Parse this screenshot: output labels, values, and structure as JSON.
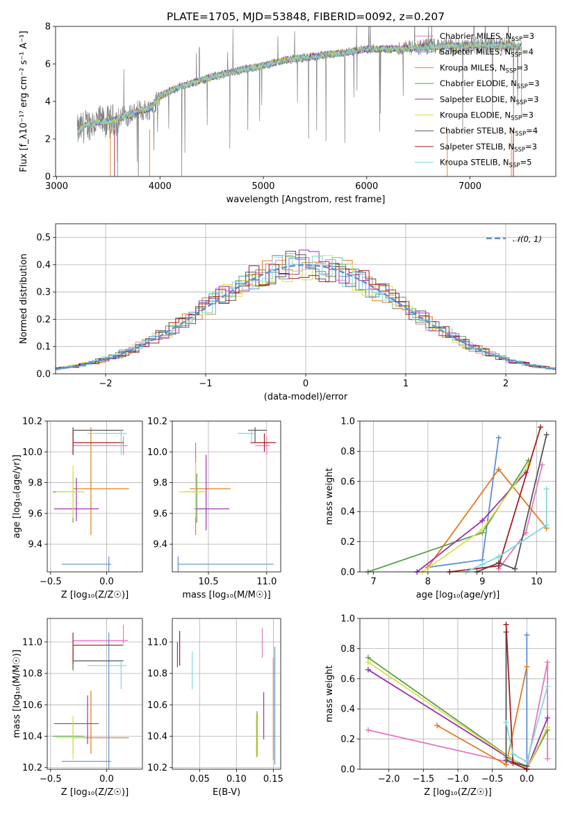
{
  "title": "PLATE=1705, MJD=53848, FIBERID=0092, z=0.207",
  "colors": {
    "Chabrier MILES": "#e377c2",
    "Salpeter MILES": "#5b8ed6",
    "Kroupa MILES": "#e07b1e",
    "Chabrier ELODIE": "#5a9e4b",
    "Salpeter ELODIE": "#9b30b0",
    "Kroupa ELODIE": "#d9e04a",
    "Chabrier STELIB": "#555555",
    "Salpeter STELIB": "#a51c1c",
    "Kroupa STELIB": "#7fd8de"
  },
  "chart_data": [
    {
      "type": "line",
      "xlabel": "wavelength [Angstrom, rest frame]",
      "ylabel": "Flux [f_λ10⁻¹⁷ erg cm⁻² s⁻¹ A⁻¹]",
      "xlim": [
        2990,
        7830
      ],
      "ylim": [
        0,
        8
      ],
      "xticks": [
        "3000",
        "4000",
        "5000",
        "6000",
        "7000"
      ],
      "yticks": [
        "0",
        "2",
        "4",
        "6",
        "8"
      ],
      "grid": false,
      "legend_position": "right",
      "data_color": "#808080",
      "continuum": {
        "x": [
          3200,
          3300,
          3400,
          3500,
          3600,
          3700,
          3800,
          3900,
          4000,
          4200,
          4500,
          4800,
          5000,
          5200,
          5500,
          5800,
          6000,
          6300,
          6600,
          7000,
          7300,
          7500
        ],
        "y": [
          2.4,
          2.8,
          2.9,
          2.9,
          3.1,
          3.3,
          3.5,
          3.6,
          4.3,
          4.8,
          5.3,
          5.7,
          5.9,
          6.2,
          6.4,
          6.6,
          6.8,
          6.8,
          6.9,
          7.0,
          7.0,
          6.9
        ]
      },
      "series": [
        {
          "name": "Chabrier MILES, N_SSP=3"
        },
        {
          "name": "Salpeter MILES, N_SSP=4"
        },
        {
          "name": "Kroupa MILES, N_SSP=3"
        },
        {
          "name": "Chabrier ELODIE, N_SSP=3"
        },
        {
          "name": "Salpeter ELODIE, N_SSP=3"
        },
        {
          "name": "Kroupa ELODIE, N_SSP=3"
        },
        {
          "name": "Chabrier STELIB, N_SSP=4"
        },
        {
          "name": "Salpeter STELIB, N_SSP=3"
        },
        {
          "name": "Kroupa STELIB, N_SSP=5"
        }
      ]
    },
    {
      "type": "histogram",
      "xlabel": "(data-model)/error",
      "ylabel": "Normed distribution",
      "xlim": [
        -2.5,
        2.5
      ],
      "ylim": [
        0,
        0.55
      ],
      "xticks": [
        "−2",
        "−1",
        "0",
        "1",
        "2"
      ],
      "yticks": [
        "0.0",
        "0.1",
        "0.2",
        "0.3",
        "0.4",
        "0.5"
      ],
      "grid": true,
      "legend": {
        "label": "𝒩(0, 1)",
        "position": "top-right",
        "color": "#5b8ed6",
        "style": "dashed"
      },
      "bin_width": 0.1
    },
    {
      "type": "errorbar",
      "xlabel": "Z [log₁₀(Z/Z☉)]",
      "ylabel": "age  [log₁₀(age/yr)]",
      "xlim": [
        -0.53,
        0.32
      ],
      "ylim": [
        9.22,
        10.2
      ],
      "xticks": [
        "−0.5",
        "0.0"
      ],
      "yticks": [
        "9.4",
        "9.6",
        "9.8",
        "10.0",
        "10.2"
      ],
      "grid": true,
      "points": [
        {
          "model": "Chabrier MILES",
          "x": 0.15,
          "xerr": [
            0.45,
            0.04
          ],
          "y": 10.04,
          "yerr": [
            0.06,
            0.06
          ]
        },
        {
          "model": "Salpeter MILES",
          "x": 0.02,
          "xerr": [
            0.42,
            0.02
          ],
          "y": 9.27,
          "yerr": [
            0.7,
            0.05
          ]
        },
        {
          "model": "Kroupa MILES",
          "x": -0.14,
          "xerr": [
            0.16,
            0.34
          ],
          "y": 9.76,
          "yerr": [
            0.3,
            0.4
          ]
        },
        {
          "model": "Chabrier ELODIE",
          "x": -0.3,
          "xerr": [
            0.18,
            0.1
          ],
          "y": 9.74,
          "yerr": [
            0.2,
            0.13
          ]
        },
        {
          "model": "Salpeter ELODIE",
          "x": -0.27,
          "xerr": [
            0.2,
            0.2
          ],
          "y": 9.63,
          "yerr": [
            0.08,
            0.2
          ]
        },
        {
          "model": "Kroupa ELODIE",
          "x": -0.3,
          "xerr": [
            0.15,
            0.1
          ],
          "y": 9.74,
          "yerr": [
            0.17,
            0.17
          ]
        },
        {
          "model": "Chabrier STELIB",
          "x": -0.3,
          "xerr": [
            0.0,
            0.45
          ],
          "y": 10.14,
          "yerr": [
            0.16,
            0.02
          ]
        },
        {
          "model": "Salpeter STELIB",
          "x": -0.3,
          "xerr": [
            0.0,
            0.45
          ],
          "y": 10.06,
          "yerr": [
            0.08,
            0.08
          ]
        },
        {
          "model": "Kroupa STELIB",
          "x": 0.13,
          "xerr": [
            0.3,
            0.05
          ],
          "y": 10.12,
          "yerr": [
            0.14,
            0.02
          ]
        }
      ]
    },
    {
      "type": "errorbar",
      "xlabel": "mass [log₁₀(M/M☉)]",
      "ylabel": "",
      "xlim": [
        10.19,
        11.12
      ],
      "ylim": [
        9.22,
        10.2
      ],
      "xticks": [
        "10.5",
        "11.0"
      ],
      "yticks": [
        "9.4",
        "9.6",
        "9.8",
        "10.0",
        "10.2"
      ],
      "grid": true,
      "points": [
        {
          "model": "Chabrier MILES",
          "x": 11.0,
          "xerr": [
            0.1,
            0.03
          ],
          "y": 10.04,
          "yerr": [
            0.06,
            0.06
          ]
        },
        {
          "model": "Salpeter MILES",
          "x": 10.24,
          "xerr": [
            0.0,
            0.82
          ],
          "y": 9.27,
          "yerr": [
            0.7,
            0.05
          ]
        },
        {
          "model": "Kroupa MILES",
          "x": 10.39,
          "xerr": [
            0.05,
            0.3
          ],
          "y": 9.76,
          "yerr": [
            0.3,
            0.3
          ]
        },
        {
          "model": "Chabrier ELODIE",
          "x": 10.4,
          "xerr": [
            0.11,
            0.09
          ],
          "y": 9.74,
          "yerr": [
            0.2,
            0.12
          ]
        },
        {
          "model": "Salpeter ELODIE",
          "x": 10.48,
          "xerr": [
            0.1,
            0.2
          ],
          "y": 9.63,
          "yerr": [
            0.14,
            0.35
          ]
        },
        {
          "model": "Kroupa ELODIE",
          "x": 10.39,
          "xerr": [
            0.14,
            0.1
          ],
          "y": 9.74,
          "yerr": [
            0.17,
            0.19
          ]
        },
        {
          "model": "Chabrier STELIB",
          "x": 10.9,
          "xerr": [
            0.06,
            0.1
          ],
          "y": 10.14,
          "yerr": [
            0.08,
            0.02
          ]
        },
        {
          "model": "Salpeter STELIB",
          "x": 10.98,
          "xerr": [
            0.12,
            0.1
          ],
          "y": 10.06,
          "yerr": [
            0.06,
            0.06
          ]
        },
        {
          "model": "Kroupa STELIB",
          "x": 10.87,
          "xerr": [
            0.12,
            0.03
          ],
          "y": 10.12,
          "yerr": [
            0.06,
            0.02
          ]
        }
      ]
    },
    {
      "type": "line",
      "xlabel": "age  [log₁₀(age/yr)]",
      "ylabel": "mass weight",
      "xlim": [
        6.75,
        10.35
      ],
      "ylim": [
        0,
        1
      ],
      "xticks": [
        "7",
        "8",
        "9",
        "10"
      ],
      "yticks": [
        "0.0",
        "0.2",
        "0.4",
        "0.6",
        "0.8",
        "1.0"
      ],
      "grid": true,
      "series": [
        {
          "model": "Chabrier MILES",
          "x": [
            9.3,
            9.8,
            10.1
          ],
          "y": [
            0.02,
            0.26,
            0.71
          ]
        },
        {
          "model": "Salpeter MILES",
          "x": [
            8.0,
            9.0,
            9.3
          ],
          "y": [
            0.03,
            0.08,
            0.89
          ]
        },
        {
          "model": "Kroupa MILES",
          "x": [
            8.0,
            9.3,
            10.18
          ],
          "y": [
            0.03,
            0.68,
            0.29
          ]
        },
        {
          "model": "Chabrier ELODIE",
          "x": [
            6.9,
            9.0,
            9.85
          ],
          "y": [
            0.0,
            0.26,
            0.74
          ]
        },
        {
          "model": "Salpeter ELODIE",
          "x": [
            7.8,
            9.0,
            9.8
          ],
          "y": [
            0.0,
            0.34,
            0.66
          ]
        },
        {
          "model": "Kroupa ELODIE",
          "x": [
            7.9,
            9.0,
            9.85
          ],
          "y": [
            0.0,
            0.28,
            0.71
          ]
        },
        {
          "model": "Chabrier STELIB",
          "x": [
            8.9,
            9.3,
            9.6,
            10.18
          ],
          "y": [
            0.0,
            0.06,
            0.02,
            0.91
          ]
        },
        {
          "model": "Salpeter STELIB",
          "x": [
            8.4,
            9.3,
            10.07
          ],
          "y": [
            0.0,
            0.04,
            0.96
          ]
        },
        {
          "model": "Kroupa STELIB",
          "x": [
            8.7,
            9.0,
            9.3,
            10.18,
            10.18
          ],
          "y": [
            0.0,
            0.05,
            0.1,
            0.31,
            0.55
          ]
        }
      ]
    },
    {
      "type": "errorbar",
      "xlabel": "Z [log₁₀(Z/Z☉)]",
      "ylabel": "mass [log₁₀(M/M☉)]",
      "xlim": [
        -0.53,
        0.32
      ],
      "ylim": [
        10.19,
        11.15
      ],
      "xticks": [
        "−0.5",
        "0.0"
      ],
      "yticks": [
        "10.2",
        "10.4",
        "10.6",
        "10.8",
        "11.0"
      ],
      "grid": true,
      "points": [
        {
          "model": "Chabrier MILES",
          "x": 0.15,
          "xerr": [
            0.45,
            0.04
          ],
          "y": 11.01,
          "yerr": [
            0.02,
            0.1
          ]
        },
        {
          "model": "Salpeter MILES",
          "x": 0.02,
          "xerr": [
            0.42,
            0.02
          ],
          "y": 10.24,
          "yerr": [
            0.05,
            0.82
          ]
        },
        {
          "model": "Kroupa MILES",
          "x": -0.14,
          "xerr": [
            0.16,
            0.34
          ],
          "y": 10.39,
          "yerr": [
            0.1,
            0.3
          ]
        },
        {
          "model": "Chabrier ELODIE",
          "x": -0.3,
          "xerr": [
            0.18,
            0.1
          ],
          "y": 10.4,
          "yerr": [
            0.11,
            0.09
          ]
        },
        {
          "model": "Salpeter ELODIE",
          "x": -0.17,
          "xerr": [
            0.3,
            0.1
          ],
          "y": 10.48,
          "yerr": [
            0.13,
            0.18
          ]
        },
        {
          "model": "Kroupa ELODIE",
          "x": -0.3,
          "xerr": [
            0.15,
            0.1
          ],
          "y": 10.39,
          "yerr": [
            0.14,
            0.14
          ]
        },
        {
          "model": "Chabrier STELIB",
          "x": -0.3,
          "xerr": [
            0.0,
            0.45
          ],
          "y": 10.88,
          "yerr": [
            0.06,
            0.1
          ]
        },
        {
          "model": "Salpeter STELIB",
          "x": -0.3,
          "xerr": [
            0.0,
            0.45
          ],
          "y": 10.98,
          "yerr": [
            0.12,
            0.08
          ]
        },
        {
          "model": "Kroupa STELIB",
          "x": 0.13,
          "xerr": [
            0.3,
            0.05
          ],
          "y": 10.85,
          "yerr": [
            0.15,
            0.03
          ]
        }
      ]
    },
    {
      "type": "errorbar",
      "xlabel": "E(B-V)",
      "ylabel": "",
      "xlim": [
        0.013,
        0.16
      ],
      "ylim": [
        10.19,
        11.15
      ],
      "xticks": [
        "0.05",
        "0.10",
        "0.15"
      ],
      "yticks": [
        "10.2",
        "10.4",
        "10.6",
        "10.8",
        "11.0"
      ],
      "grid": true,
      "points": [
        {
          "model": "Chabrier MILES",
          "x": 0.135,
          "y": 11.01,
          "yerr": [
            0.11,
            0.08
          ]
        },
        {
          "model": "Salpeter MILES",
          "x": 0.152,
          "y": 10.5,
          "yerr": [
            0.28,
            0.47
          ]
        },
        {
          "model": "Kroupa MILES",
          "x": 0.15,
          "y": 10.6,
          "yerr": [
            0.35,
            0.3
          ]
        },
        {
          "model": "Chabrier ELODIE",
          "x": 0.128,
          "y": 10.4,
          "yerr": [
            0.13,
            0.16
          ]
        },
        {
          "model": "Salpeter ELODIE",
          "x": 0.137,
          "y": 10.6,
          "yerr": [
            0.22,
            0.08
          ]
        },
        {
          "model": "Kroupa ELODIE",
          "x": 0.127,
          "y": 10.4,
          "yerr": [
            0.14,
            0.14
          ]
        },
        {
          "model": "Chabrier STELIB",
          "x": 0.02,
          "y": 10.9,
          "yerr": [
            0.06,
            0.1
          ]
        },
        {
          "model": "Salpeter STELIB",
          "x": 0.023,
          "y": 10.95,
          "yerr": [
            0.1,
            0.12
          ]
        },
        {
          "model": "Kroupa STELIB",
          "x": 0.04,
          "y": 10.82,
          "yerr": [
            0.12,
            0.12
          ]
        }
      ]
    },
    {
      "type": "line",
      "xlabel": "Z [log₁₀(Z/Z☉)]",
      "ylabel": "mass weight",
      "xlim": [
        -2.42,
        0.42
      ],
      "ylim": [
        0,
        1
      ],
      "xticks": [
        "−2.0",
        "−1.5",
        "−1.0",
        "−0.5",
        "0.0"
      ],
      "yticks": [
        "0.0",
        "0.2",
        "0.4",
        "0.6",
        "0.8",
        "1.0"
      ],
      "grid": true,
      "series": [
        {
          "model": "Chabrier MILES",
          "x": [
            -2.3,
            0.0,
            0.3,
            0.3
          ],
          "y": [
            0.26,
            0.02,
            0.71,
            0.07
          ]
        },
        {
          "model": "Salpeter MILES",
          "x": [
            -0.3,
            0.0,
            0.0
          ],
          "y": [
            0.08,
            0.02,
            0.89
          ]
        },
        {
          "model": "Kroupa MILES",
          "x": [
            -1.3,
            -0.3,
            0.0
          ],
          "y": [
            0.29,
            0.03,
            0.68
          ]
        },
        {
          "model": "Chabrier ELODIE",
          "x": [
            -2.3,
            0.0,
            0.3
          ],
          "y": [
            0.74,
            0.0,
            0.26
          ]
        },
        {
          "model": "Salpeter ELODIE",
          "x": [
            -2.3,
            0.0,
            0.3
          ],
          "y": [
            0.66,
            0.0,
            0.34
          ]
        },
        {
          "model": "Kroupa ELODIE",
          "x": [
            -2.3,
            0.0,
            0.3
          ],
          "y": [
            0.71,
            0.0,
            0.28
          ]
        },
        {
          "model": "Chabrier STELIB",
          "x": [
            -0.3,
            -0.3,
            0.0
          ],
          "y": [
            0.91,
            0.06,
            0.02
          ]
        },
        {
          "model": "Salpeter STELIB",
          "x": [
            -0.3,
            -0.2,
            0.0
          ],
          "y": [
            0.96,
            0.04,
            0.0
          ]
        },
        {
          "model": "Kroupa STELIB",
          "x": [
            -0.3,
            -0.2,
            0.0,
            0.3
          ],
          "y": [
            0.31,
            0.1,
            0.05,
            0.55
          ]
        }
      ]
    }
  ]
}
